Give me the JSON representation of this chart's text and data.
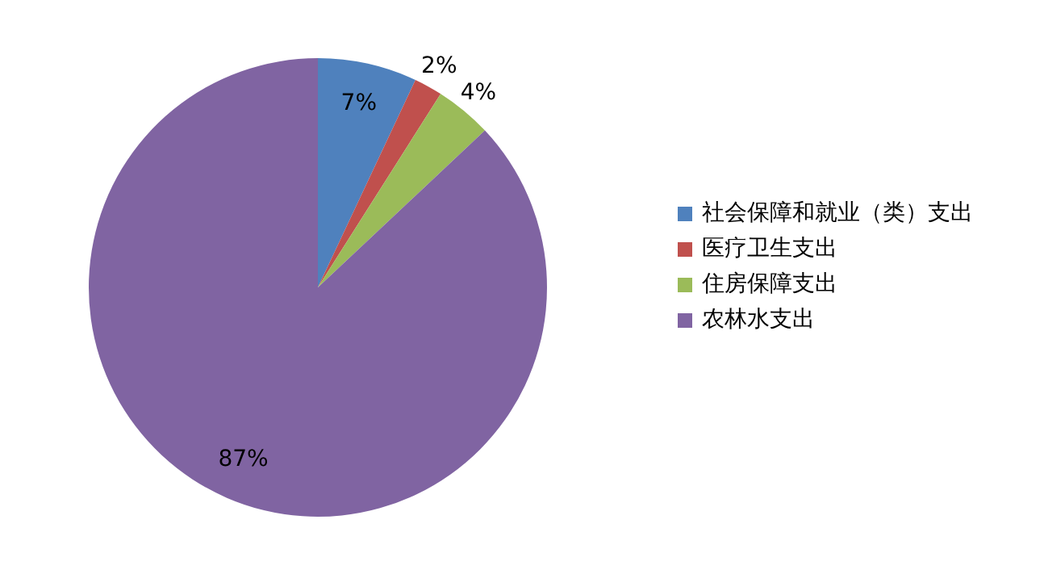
{
  "chart_data": {
    "type": "pie",
    "categories": [
      "社会保障和就业（类）支出",
      "医疗卫生支出",
      "住房保障支出",
      "农林水支出"
    ],
    "values": [
      7,
      2,
      4,
      87
    ],
    "value_labels": [
      "7%",
      "2%",
      "4%",
      "87%"
    ],
    "colors": [
      "#4f81bd",
      "#c0504d",
      "#9bbb59",
      "#8064a2"
    ],
    "legend": "right"
  }
}
